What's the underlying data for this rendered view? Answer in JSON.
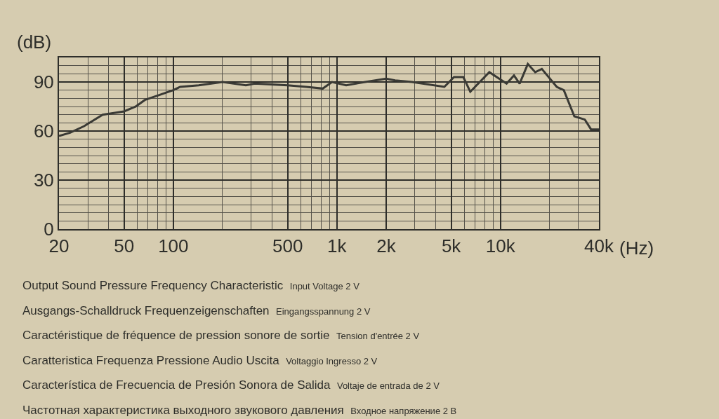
{
  "chart_data": {
    "type": "line",
    "x": [
      20,
      23.4,
      28.5,
      37,
      50,
      59,
      67,
      82,
      100,
      110,
      143,
      200,
      278,
      315,
      500,
      650,
      820,
      934,
      1140,
      1490,
      2000,
      2270,
      2880,
      4540,
      5200,
      5930,
      6540,
      8550,
      10900,
      12100,
      13100,
      14700,
      16300,
      17900,
      22100,
      24400,
      28300,
      32800,
      35800,
      40000
    ],
    "values": [
      57,
      59,
      63,
      70,
      72,
      75,
      79,
      82,
      85,
      87,
      88,
      90,
      88,
      89,
      88,
      87,
      86,
      90,
      88,
      90,
      92,
      91,
      90,
      87,
      93,
      93,
      84,
      96,
      89,
      94,
      89,
      101,
      96,
      98,
      87,
      85,
      69,
      67,
      61,
      61
    ],
    "color": "#3a3a35",
    "xlabel": "(Hz)",
    "ylabel": "(dB)",
    "log": "x",
    "xlim": [
      20,
      40000
    ],
    "xticks": [
      20,
      50,
      100,
      500,
      {
        "value": 1000,
        "label": "1k"
      },
      {
        "value": 2000,
        "label": "2k"
      },
      {
        "value": 5000,
        "label": "5k"
      },
      {
        "value": 10000,
        "label": "10k"
      },
      {
        "value": 40000,
        "label": "40k"
      }
    ],
    "ylim": [
      0,
      105
    ],
    "yticks": [
      0,
      30,
      60,
      90
    ],
    "grid": true,
    "marker": "none",
    "line_style": "solid",
    "annotations": [
      "Output Sound Pressure Frequency Characteristic",
      "Input Voltage 2 V",
      "Ausgangs-Schalldruck Frequenzeigenschaften",
      "Eingangsspannung 2 V",
      "Caractéristique de fréquence de pression sonore de sortie",
      "Tension d'entrée 2 V",
      "Caratteristica Frequenza Pressione Audio Uscita",
      "Voltaggio Ingresso 2 V",
      "Característica de Frecuencia de Presión Sonora de Salida",
      "Voltaje de entrada de 2 V",
      "Частотная характеристика выходного звукового давления",
      "Входное напряжение 2 В"
    ]
  }
}
